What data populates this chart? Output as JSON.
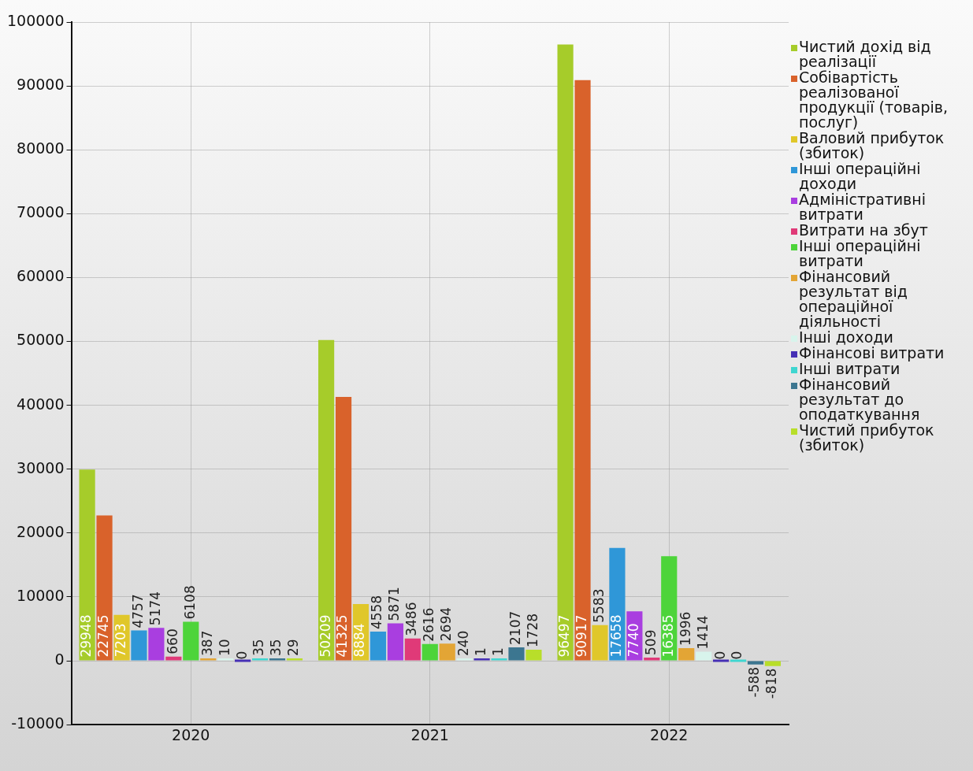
{
  "chart_data": {
    "type": "bar",
    "categories": [
      "2020",
      "2021",
      "2022"
    ],
    "series": [
      {
        "name": "Чистий дохід від реалізації",
        "color": "#a6cc2a",
        "values": [
          29948,
          50209,
          96497
        ]
      },
      {
        "name": "Собівартість реалізованої продукції (товарів, послуг)",
        "color": "#d9622b",
        "values": [
          22745,
          41325,
          90917
        ]
      },
      {
        "name": "Валовий прибуток (збиток)",
        "color": "#e0c72a",
        "values": [
          7203,
          8884,
          5583
        ]
      },
      {
        "name": "Інші операційні доходи",
        "color": "#2f97d8",
        "values": [
          4757,
          4558,
          17658
        ]
      },
      {
        "name": "Адміністративні витрати",
        "color": "#a93ee0",
        "values": [
          5174,
          5871,
          7740
        ]
      },
      {
        "name": "Витрати на збут",
        "color": "#e03a78",
        "values": [
          660,
          3486,
          509
        ]
      },
      {
        "name": "Інші операційні витрати",
        "color": "#4dd43a",
        "values": [
          6108,
          2616,
          16385
        ]
      },
      {
        "name": "Фінансовий результат від операційної діяльності",
        "color": "#e3a535",
        "values": [
          387,
          2694,
          1996
        ]
      },
      {
        "name": "Інші доходи",
        "color": "#d8f4ec",
        "values": [
          10,
          240,
          1414
        ]
      },
      {
        "name": "Фінансові витрати",
        "color": "#4630b5",
        "values": [
          0,
          1,
          0
        ]
      },
      {
        "name": "Інші витрати",
        "color": "#3fd6d0",
        "values": [
          35,
          1,
          0
        ]
      },
      {
        "name": "Фінансовий результат до оподаткування",
        "color": "#3c7690",
        "values": [
          35,
          2107,
          -588
        ]
      },
      {
        "name": "Чистий прибуток (збиток)",
        "color": "#b8de2a",
        "values": [
          29,
          1728,
          -818
        ]
      }
    ],
    "ylim": [
      -10000,
      100000
    ],
    "yticks": [
      -10000,
      0,
      10000,
      20000,
      30000,
      40000,
      50000,
      60000,
      70000,
      80000,
      90000,
      100000
    ],
    "grid": true,
    "legend": "right",
    "data_labels": true
  }
}
